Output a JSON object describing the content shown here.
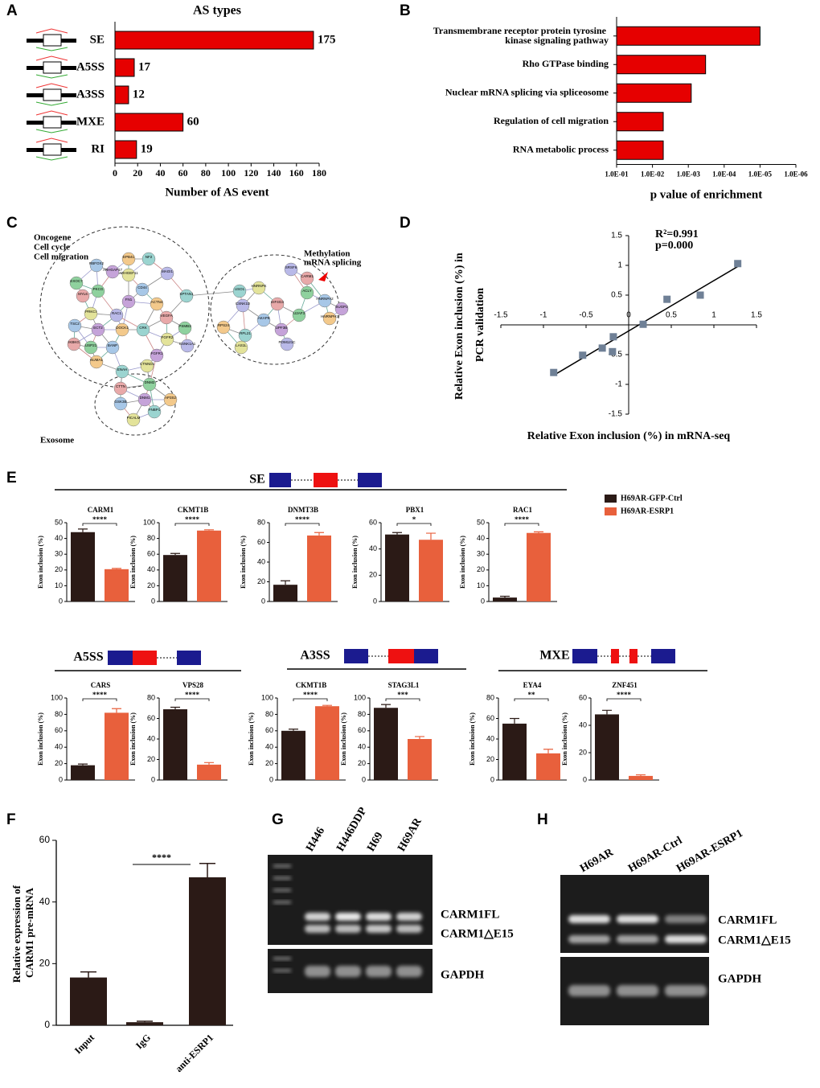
{
  "chart_data": [
    {
      "type": "hbar",
      "panel": "A",
      "title": "AS types",
      "categories": [
        "SE",
        "A5SS",
        "A3SS",
        "MXE",
        "RI"
      ],
      "values": [
        175,
        17,
        12,
        60,
        19
      ],
      "color": "#e60000",
      "xlim": [
        0,
        180
      ],
      "xticks": [
        0,
        20,
        40,
        60,
        80,
        100,
        120,
        140,
        160,
        180
      ],
      "xlabel": "Number of AS event"
    },
    {
      "type": "hbar",
      "panel": "B",
      "categories": [
        "Transmembrane receptor protein tyrosine kinase signaling pathway",
        "Rho GTPase binding",
        "Nuclear mRNA splicing via spliceosome",
        "Regulation of cell migration",
        "RNA metabolic process"
      ],
      "values": [
        1e-05,
        0.00033,
        0.00083,
        0.005,
        0.005
      ],
      "color": "#e60000",
      "log": true,
      "xlim": [
        0.1,
        1e-06
      ],
      "xticks": [
        {
          "value": 0.1,
          "label": "1.0E-01"
        },
        {
          "value": 0.01,
          "label": "1.0E-02"
        },
        {
          "value": 0.001,
          "label": "1.0E-03"
        },
        {
          "value": 0.0001,
          "label": "1.0E-04"
        },
        {
          "value": 1e-05,
          "label": "1.0E-05"
        },
        {
          "value": 1e-06,
          "label": "1.0E-06"
        }
      ],
      "xlabel": "p value of enrichment"
    },
    {
      "type": "scatter",
      "panel": "D",
      "x": [
        1.28,
        0.45,
        0.84,
        0.17,
        -0.18,
        -0.19,
        -0.31,
        -0.54,
        -0.88
      ],
      "y": [
        1.03,
        0.43,
        0.5,
        0.01,
        -0.2,
        -0.45,
        -0.39,
        -0.51,
        -0.8
      ],
      "color": "#6f8096",
      "xlim": [
        -1.5,
        1.5
      ],
      "ylim": [
        -1.5,
        1.5
      ],
      "xticks": [
        -1.5,
        -1,
        -0.5,
        0,
        0.5,
        1,
        1.5
      ],
      "yticks": [
        -1.5,
        -1,
        -0.5,
        0.5,
        1,
        1.5
      ],
      "xlabel": "Relative Exon inclusion (%) in mRNA-seq",
      "ylabel": "Relative Exon inclusion (%) in PCR validation",
      "annotations": [
        "R²=0.991",
        "p=0.000"
      ],
      "trendline": true
    },
    {
      "type": "bar-panels",
      "panel": "E",
      "ylabel": "Exon inclusion (%)",
      "series": [
        {
          "name": "H69AR-GFP-Ctrl",
          "color": "#2b1a16"
        },
        {
          "name": "H69AR-ESRP1",
          "color": "#e8603c"
        }
      ],
      "groups": [
        {
          "label": "SE",
          "panels": [
            {
              "title": "CARM1",
              "values": [
                44,
                20.5
              ],
              "errors": [
                2,
                0.5
              ],
              "ylim": [
                0,
                50
              ],
              "yticks": [
                0,
                10,
                20,
                30,
                40,
                50
              ],
              "significance": "****"
            },
            {
              "title": "CKMT1B",
              "values": [
                59,
                90
              ],
              "errors": [
                2,
                1
              ],
              "ylim": [
                0,
                100
              ],
              "yticks": [
                0,
                20,
                40,
                60,
                80,
                100
              ],
              "significance": "****"
            },
            {
              "title": "DNMT3B",
              "values": [
                17,
                67
              ],
              "errors": [
                4,
                3
              ],
              "ylim": [
                0,
                80
              ],
              "yticks": [
                0,
                20,
                40,
                60,
                80
              ],
              "significance": "****"
            },
            {
              "title": "PBX1",
              "values": [
                51,
                47
              ],
              "errors": [
                1.5,
                5
              ],
              "ylim": [
                0,
                60
              ],
              "yticks": [
                0,
                20,
                40,
                60
              ],
              "significance": "*"
            },
            {
              "title": "RAC1",
              "values": [
                2.5,
                43.5
              ],
              "errors": [
                0.8,
                0.7
              ],
              "ylim": [
                0,
                50
              ],
              "yticks": [
                0,
                10,
                20,
                30,
                40,
                50
              ],
              "significance": "****"
            }
          ]
        },
        {
          "label": "A5SS",
          "panels": [
            {
              "title": "CARS",
              "values": [
                18,
                82
              ],
              "errors": [
                1.5,
                5
              ],
              "ylim": [
                0,
                100
              ],
              "yticks": [
                0,
                20,
                40,
                60,
                80,
                100
              ],
              "significance": "****"
            },
            {
              "title": "VPS28",
              "values": [
                69,
                15
              ],
              "errors": [
                2,
                2
              ],
              "ylim": [
                0,
                80
              ],
              "yticks": [
                0,
                20,
                40,
                60,
                80
              ],
              "significance": "****"
            }
          ]
        },
        {
          "label": "A3SS",
          "panels": [
            {
              "title": "CKMT1B",
              "values": [
                60,
                90
              ],
              "errors": [
                2,
                1
              ],
              "ylim": [
                0,
                100
              ],
              "yticks": [
                0,
                20,
                40,
                60,
                80,
                100
              ],
              "significance": "****"
            },
            {
              "title": "STAG3L1",
              "values": [
                88,
                50
              ],
              "errors": [
                4,
                3
              ],
              "ylim": [
                0,
                100
              ],
              "yticks": [
                0,
                20,
                40,
                60,
                80,
                100
              ],
              "significance": "***"
            }
          ]
        },
        {
          "label": "MXE",
          "panels": [
            {
              "title": "EYA4",
              "values": [
                55,
                26
              ],
              "errors": [
                5,
                4
              ],
              "ylim": [
                0,
                80
              ],
              "yticks": [
                0,
                20,
                40,
                60,
                80
              ],
              "significance": "**"
            },
            {
              "title": "ZNF451",
              "values": [
                48,
                3
              ],
              "errors": [
                3,
                0.8
              ],
              "ylim": [
                0,
                60
              ],
              "yticks": [
                0,
                20,
                40,
                60
              ],
              "significance": "****"
            }
          ]
        }
      ]
    },
    {
      "type": "bar",
      "panel": "F",
      "categories": [
        "Input",
        "IgG",
        "anti-ESRP1"
      ],
      "values": [
        15.5,
        1,
        48
      ],
      "errors": [
        1.8,
        0.3,
        4.5
      ],
      "color": "#2b1a16",
      "ylim": [
        0,
        60
      ],
      "yticks": [
        0,
        20,
        40,
        60
      ],
      "ylabel": "Relative expression of CARM1 pre-mRNA",
      "significance": "****"
    }
  ],
  "network": {
    "panel": "C",
    "labels": [
      "Oncogene",
      "Cell cycle",
      "Cell migration",
      "Methylation",
      "mRNA splicing",
      "Exosome"
    ],
    "nodes": [
      "EXOC7",
      "RBFOX2",
      "ARHGAP17",
      "EPB41",
      "NF2",
      "ARHGEF11",
      "MAGI1",
      "MYL6",
      "PKCG",
      "CD44",
      "FN1",
      "ACTN4",
      "SPTAN1",
      "PRKCI",
      "RAC1",
      "VEGFA",
      "PSMB3",
      "TSC2",
      "ECT2",
      "DOCK1",
      "CRK",
      "FGFR2",
      "CSNK1A1",
      "IKBKG",
      "USP21",
      "BANP",
      "FGFR1",
      "NUMA1",
      "ENAH",
      "CTNND1",
      "SRSF6",
      "CARM1",
      "ACLY",
      "HNRNPA2",
      "SUGP2",
      "HNRNPH3",
      "USO1",
      "HNRNPK",
      "CSNK1D",
      "EIF4G3",
      "U2AF3",
      "AKAP9",
      "UPF3B",
      "RPS24",
      "RPL21",
      "LAS1L",
      "POM121C",
      "CTTN",
      "DNM2",
      "GSK3B",
      "DNM1",
      "AP3S2",
      "FNBP1",
      "PICALM"
    ]
  },
  "gels": [
    {
      "panel": "G",
      "lanes": [
        "H446",
        "H446DDP",
        "H69",
        "H69AR"
      ],
      "bands": [
        "CARM1FL",
        "CARM1△E15",
        "GAPDH"
      ]
    },
    {
      "panel": "H",
      "lanes": [
        "H69AR",
        "H69AR-Ctrl",
        "H69AR-ESRP1"
      ],
      "bands": [
        "CARM1FL",
        "CARM1△E15",
        "GAPDH"
      ]
    }
  ]
}
